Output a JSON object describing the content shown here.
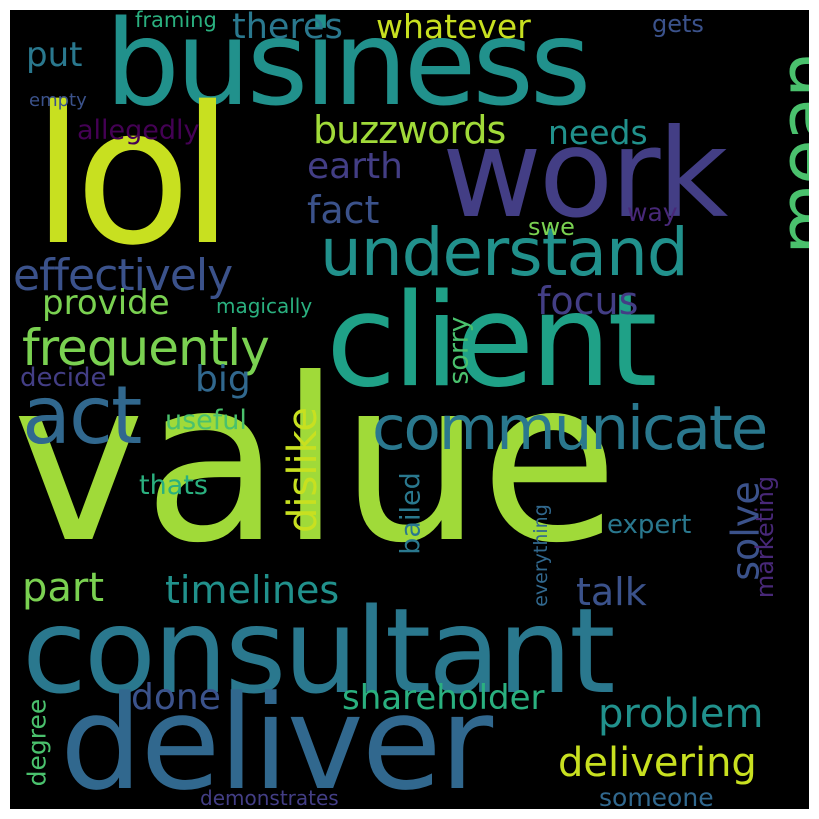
{
  "words": {
    "value": "value",
    "consultant": "consultant",
    "deliver": "deliver",
    "business": "business",
    "lol": "lol",
    "client": "client",
    "work": "work",
    "mean": "mean",
    "understand": "understand",
    "communicate": "communicate",
    "act": "act",
    "frequently": "frequently",
    "effectively": "effectively",
    "buzzwords": "buzzwords",
    "theres": "theres",
    "whatever": "whatever",
    "put": "put",
    "framing": "framing",
    "gets": "gets",
    "empty": "empty",
    "allegedly": "allegedly",
    "needs": "needs",
    "earth": "earth",
    "fact": "fact",
    "way": "way",
    "swe": "swe",
    "provide": "provide",
    "magically": "magically",
    "focus": "focus",
    "big": "big",
    "decide": "decide",
    "sorry": "sorry",
    "useful": "useful",
    "dislike": "dislike",
    "thats": "thats",
    "bailed": "bailed",
    "solve": "solve",
    "marketing": "marketing",
    "expert": "expert",
    "everything": "everything",
    "part": "part",
    "timelines": "timelines",
    "talk": "talk",
    "done": "done",
    "shareholder": "shareholder",
    "problem": "problem",
    "delivering": "delivering",
    "degree": "degree",
    "demonstrates": "demonstrates",
    "someone": "someone"
  },
  "colors": {
    "background": "#000000",
    "frame": "#ffffff",
    "yellow_green": "#c8e020",
    "lime": "#a0da39",
    "green": "#7ad151",
    "mint": "#4ac16d",
    "sea": "#2ab07f",
    "teal": "#1fa187",
    "cyan": "#21918c",
    "steel": "#2a788e",
    "slate": "#31688e",
    "indigo": "#3b528b",
    "violet": "#433e85",
    "purple": "#482878",
    "plum": "#440154"
  }
}
